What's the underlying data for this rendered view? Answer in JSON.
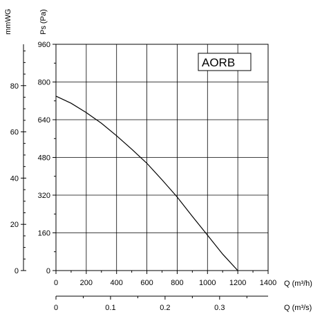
{
  "chart_data": {
    "type": "line",
    "model_label": "AORB",
    "y_pa_label": "Ps (Pa)",
    "y_mmwg_label": "mmWG",
    "x_m3h_label": "Q (m³/h)",
    "x_m3s_label": "Q (m³/s)",
    "xlim": [
      0,
      1400
    ],
    "ylim": [
      0,
      960
    ],
    "x_ticks": [
      "0",
      "200",
      "400",
      "600",
      "800",
      "1000",
      "1200",
      "1400"
    ],
    "y_ticks": [
      "0",
      "160",
      "320",
      "480",
      "640",
      "800",
      "960"
    ],
    "mmwg_ticks": [
      "0",
      "20",
      "40",
      "60",
      "80"
    ],
    "m3s_ticks": [
      "0",
      "0.1",
      "0.2",
      "0.3"
    ],
    "grid": true,
    "series": [
      {
        "x": [
          0,
          100,
          200,
          300,
          400,
          500,
          600,
          700,
          800,
          900,
          1000,
          1100,
          1200
        ],
        "y": [
          740,
          710,
          670,
          625,
          572,
          515,
          455,
          385,
          312,
          230,
          150,
          70,
          0
        ]
      }
    ]
  }
}
